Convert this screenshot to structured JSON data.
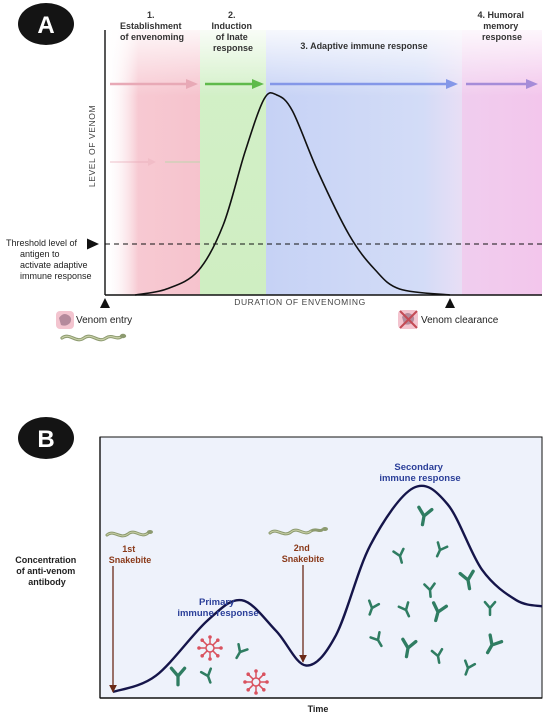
{
  "panel_a": {
    "badge": "A",
    "phases": [
      {
        "title": [
          "1.",
          "Establishment",
          "of envenoming"
        ],
        "color": "#f3b6c2",
        "arrow": "#e6a4b2"
      },
      {
        "title": [
          "2.",
          "Induction",
          "of Inate",
          "response"
        ],
        "color": "#bfe8b0",
        "arrow": "#5fba4b"
      },
      {
        "title": [
          "3. Adaptive immune response"
        ],
        "color": "#b9c6f1",
        "arrow": "#7f92e6"
      },
      {
        "title": [
          "4. Humoral",
          "memory",
          "response"
        ],
        "color": "#f1bde8",
        "arrow": "#a188d6"
      }
    ],
    "ylabel": "LEVEL OF VENOM",
    "xlabel": "DURATION OF ENVENOMING",
    "threshold_label": [
      "Threshold level of",
      "antigen to",
      "activate adaptive",
      "immune response"
    ],
    "venom_entry": "Venom entry",
    "venom_clearance": "Venom clearance",
    "venom_curve": {
      "x": [
        0,
        0.1,
        0.2,
        0.28,
        0.35,
        0.41,
        0.45,
        0.5,
        0.58,
        0.68,
        0.76,
        0.84,
        1
      ],
      "y": [
        0,
        0.03,
        0.12,
        0.35,
        0.72,
        0.98,
        1.0,
        0.92,
        0.62,
        0.3,
        0.13,
        0.03,
        0
      ],
      "threshold": 0.25
    }
  },
  "panel_b": {
    "badge": "B",
    "ylabel": [
      "Concentration",
      "of  anti-venom",
      "antibody"
    ],
    "xlabel": "Time",
    "first_bite": [
      "1st",
      "Snakebite"
    ],
    "second_bite": [
      "2nd",
      "Snakebite"
    ],
    "primary": [
      "Primary",
      "immune response"
    ],
    "secondary": [
      "Secondary",
      "immune response"
    ],
    "antibody_curve": {
      "x": [
        0,
        0.1,
        0.22,
        0.3,
        0.38,
        0.45,
        0.52,
        0.6,
        0.7,
        0.78,
        0.86,
        0.94,
        1
      ],
      "y": [
        0,
        0.08,
        0.35,
        0.45,
        0.3,
        0.13,
        0.28,
        0.72,
        1.0,
        0.92,
        0.6,
        0.45,
        0.42
      ]
    }
  },
  "colors": {
    "badge": "#141414",
    "curve": "#15154a",
    "label_blue": "#2b3f99",
    "snakebite_text": "#8a3a1a",
    "bite_arrow": "#6b2a18",
    "antibody": "#2f7d62",
    "antigen": "#d9525f",
    "panel_b_bg": "#eef2fb"
  }
}
